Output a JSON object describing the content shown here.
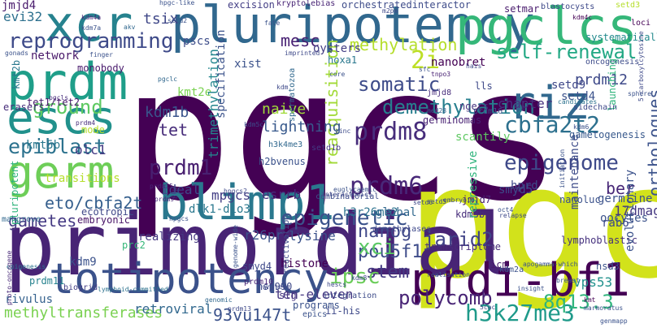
{
  "words": [
    {
      "text": "pgcs",
      "color": "#440154"
    },
    {
      "text": "pgc",
      "color": "#d2e21b"
    },
    {
      "text": "primordial",
      "color": "#482475"
    },
    {
      "text": "pluripotency",
      "color": "#31688e"
    },
    {
      "text": "pgclcs",
      "color": "#35b779"
    },
    {
      "text": "xcr",
      "color": "#26828e"
    },
    {
      "text": "prdm",
      "color": "#1f9e89"
    },
    {
      "text": "escs",
      "color": "#21918c"
    },
    {
      "text": "germ",
      "color": "#6ece58"
    },
    {
      "text": "blimp1",
      "color": "#2a788e"
    },
    {
      "text": "totipotency",
      "color": "#3b528b"
    },
    {
      "text": "prdi-bf1",
      "color": "#440154"
    },
    {
      "text": "riz",
      "color": "#31688e"
    },
    {
      "text": "reprogramming",
      "color": "#3e4a89"
    },
    {
      "text": "epiblast",
      "color": "#2c728e"
    },
    {
      "text": "ground",
      "color": "#5ec962"
    },
    {
      "text": "epigenetic",
      "color": "#3b528b"
    },
    {
      "text": "epigenome",
      "color": "#3e4989"
    },
    {
      "text": "prdm8",
      "color": "#472d7b"
    },
    {
      "text": "prdm6",
      "color": "#482878"
    },
    {
      "text": "prdm1",
      "color": "#481f70"
    },
    {
      "text": "cbfa2t2",
      "color": "#2d708e"
    },
    {
      "text": "demethylation",
      "color": "#277f8e"
    },
    {
      "text": "somatic",
      "color": "#3e4c8a"
    },
    {
      "text": "self-renewal",
      "color": "#22a884"
    },
    {
      "text": "methylation",
      "color": "#b5de2b"
    },
    {
      "text": "2i",
      "color": "#bddf26"
    },
    {
      "text": "reacquisition",
      "color": "#a2da37"
    },
    {
      "text": "h3k27me3",
      "color": "#1f9a8a"
    },
    {
      "text": "polycomb",
      "color": "#482475"
    },
    {
      "text": "jarid2",
      "color": "#404387"
    },
    {
      "text": "nanog",
      "color": "#3f4889"
    },
    {
      "text": "pou5f1",
      "color": "#3e4c8a"
    },
    {
      "text": "stem",
      "color": "#443983"
    },
    {
      "text": "ipsc",
      "color": "#6ccd5a"
    },
    {
      "text": "xci",
      "color": "#5ac864"
    },
    {
      "text": "8q13.3",
      "color": "#2fb47c"
    },
    {
      "text": "methyltransferases",
      "color": "#7ad151"
    },
    {
      "text": "gametes",
      "color": "#443983"
    },
    {
      "text": "eto/cbfa2t",
      "color": "#355f8d"
    },
    {
      "text": "ten-eleven",
      "color": "#453781"
    },
    {
      "text": "retroviral",
      "color": "#31688e"
    },
    {
      "text": "93vu147t",
      "color": "#3b528b"
    },
    {
      "text": "kdm9",
      "color": "#3b528b"
    },
    {
      "text": "rivulus",
      "color": "#34618d"
    },
    {
      "text": "tet",
      "color": "#472c7a"
    },
    {
      "text": "kdm1b",
      "color": "#3a548c"
    },
    {
      "text": "mesc",
      "color": "#482173"
    },
    {
      "text": "pscs",
      "color": "#3d4d8a"
    },
    {
      "text": "evi32",
      "color": "#2d708e"
    },
    {
      "text": "tsix",
      "color": "#3f4788"
    },
    {
      "text": "jmjd4",
      "color": "#481a6c"
    },
    {
      "text": "xist",
      "color": "#3b528b"
    },
    {
      "text": "kmt5b",
      "color": "#2a788e"
    },
    {
      "text": "olc1",
      "color": "#443a83"
    },
    {
      "text": "lightning",
      "color": "#38598c"
    },
    {
      "text": "naive",
      "color": "#a0da39"
    },
    {
      "text": "ideal",
      "color": "#3f4889"
    },
    {
      "text": "mpgcs",
      "color": "#433e85"
    },
    {
      "text": "esrrb",
      "color": "#472d7b"
    },
    {
      "text": "h3r26me2",
      "color": "#2c728e"
    },
    {
      "text": "r26pr",
      "color": "#3b528b"
    },
    {
      "text": "realizing",
      "color": "#453781"
    },
    {
      "text": "lysine",
      "color": "#3b528b"
    },
    {
      "text": "histone",
      "color": "#440154"
    },
    {
      "text": "prdm12",
      "color": "#3e4989"
    },
    {
      "text": "setd9",
      "color": "#3f4889"
    },
    {
      "text": "setd4",
      "color": "#3b528b"
    },
    {
      "text": "nanobret",
      "color": "#440154"
    },
    {
      "text": "chapter",
      "color": "#46327e"
    },
    {
      "text": "ber",
      "color": "#482878"
    },
    {
      "text": "germline",
      "color": "#3b528b"
    },
    {
      "text": "17dmag",
      "color": "#453781"
    },
    {
      "text": "rab6",
      "color": "#3e4989"
    },
    {
      "text": "hprd",
      "color": "#3e4989"
    },
    {
      "text": "maintenance",
      "color": "#3e4c8a"
    },
    {
      "text": "orthologues",
      "color": "#3b528b"
    },
    {
      "text": "vps53",
      "color": "#21918c"
    },
    {
      "text": "kdm3b",
      "color": "#472d7b"
    },
    {
      "text": "jmjd7",
      "color": "#482173"
    },
    {
      "text": "smyd5",
      "color": "#3e4c8a"
    },
    {
      "text": "repressive",
      "color": "#2fb47c"
    },
    {
      "text": "network",
      "color": "#481769"
    },
    {
      "text": "monobody",
      "color": "#481a6c"
    },
    {
      "text": "kmt2b",
      "color": "#2a788e"
    },
    {
      "text": "erasers",
      "color": "#472d7b"
    },
    {
      "text": "mode",
      "color": "#b8de29"
    },
    {
      "text": "pluripotent",
      "color": "#2fb47c"
    },
    {
      "text": "kmt2e",
      "color": "#7ad151"
    },
    {
      "text": "orchestratedinteractor",
      "color": "#3e4c8a"
    },
    {
      "text": "excision",
      "color": "#433e85"
    },
    {
      "text": "oysters",
      "color": "#433e85"
    },
    {
      "text": "hoxa1",
      "color": "#2a788e"
    },
    {
      "text": "trimethylation",
      "color": "#24868e"
    },
    {
      "text": "specification",
      "color": "#3b528b"
    },
    {
      "text": "gametogenesis",
      "color": "#38598c"
    },
    {
      "text": "lymphoblastic",
      "color": "#46327e"
    },
    {
      "text": "evolutionary",
      "color": "#3b528b"
    },
    {
      "text": "setd3",
      "color": "#b5de2b"
    },
    {
      "text": "setmar",
      "color": "#481a6c"
    },
    {
      "text": "kryptolebias",
      "color": "#482475"
    },
    {
      "text": "blastocysts",
      "color": "#3e4989"
    },
    {
      "text": "kdm4c",
      "color": "#440154"
    },
    {
      "text": "loci",
      "color": "#440154"
    },
    {
      "text": "systematically",
      "color": "#238a8d"
    },
    {
      "text": "oncogenesis",
      "color": "#3e4c8a"
    },
    {
      "text": "launching",
      "color": "#2fb47c"
    },
    {
      "text": "ngers",
      "color": "#46327e"
    },
    {
      "text": "prdm16",
      "color": "#3b528b"
    },
    {
      "text": "scantily",
      "color": "#5ec962"
    },
    {
      "text": "sidechain",
      "color": "#3e4989"
    },
    {
      "text": "candidates",
      "color": "#2c728e"
    },
    {
      "text": "jmjd8",
      "color": "#472d7b"
    },
    {
      "text": "tnpo3",
      "color": "#482173"
    },
    {
      "text": "med28",
      "color": "#34618d"
    },
    {
      "text": "germinomas",
      "color": "#482173"
    },
    {
      "text": "h3k4me3",
      "color": "#31688e"
    },
    {
      "text": "kdm",
      "color": "#3e4989"
    },
    {
      "text": "setd1b",
      "color": "#443983"
    },
    {
      "text": "zinc",
      "color": "#3e4c8a"
    },
    {
      "text": "spermatozoa",
      "color": "#31688e"
    },
    {
      "text": "h2bvenus",
      "color": "#3b528b"
    },
    {
      "text": "combinatorial",
      "color": "#3e4c8a"
    },
    {
      "text": "interactomics",
      "color": "#3f4889"
    },
    {
      "text": "dlk1-dio3",
      "color": "#2a788e"
    },
    {
      "text": "hfk",
      "color": "#3f4788"
    },
    {
      "text": "ecotropic",
      "color": "#3f4788"
    },
    {
      "text": "embryonic",
      "color": "#481467"
    },
    {
      "text": "transitions",
      "color": "#b5de2b"
    },
    {
      "text": "mahgrove",
      "color": "#31688e"
    },
    {
      "text": "epigenesis",
      "color": "#2c728e"
    },
    {
      "text": "proto-oncogene",
      "color": "#482878"
    },
    {
      "text": "prdm11",
      "color": "#26828e"
    },
    {
      "text": "biogrid",
      "color": "#433e85"
    },
    {
      "text": "lymphoid-committed",
      "color": "#2c728e"
    },
    {
      "text": "prc2",
      "color": "#35b779"
    },
    {
      "text": "smyd4",
      "color": "#3e4989"
    },
    {
      "text": "hsp990",
      "color": "#3e4989"
    },
    {
      "text": "slg",
      "color": "#463480"
    },
    {
      "text": "programs",
      "color": "#3b528b"
    },
    {
      "text": "epics",
      "color": "#3b528b"
    },
    {
      "text": "reactivation",
      "color": "#3e4c8a"
    },
    {
      "text": "integration",
      "color": "#3e4c8a"
    },
    {
      "text": "global",
      "color": "#31688e"
    },
    {
      "text": "demethylases",
      "color": "#3e4989"
    },
    {
      "text": "transcriptome",
      "color": "#472c7a"
    },
    {
      "text": "icm",
      "color": "#481a6c"
    },
    {
      "text": "kdm2a",
      "color": "#3b528b"
    },
    {
      "text": "nsd3",
      "color": "#3b528b"
    },
    {
      "text": "oocytes",
      "color": "#3b528b"
    },
    {
      "text": "nanoluc",
      "color": "#3b528b"
    },
    {
      "text": "prdm10",
      "color": "#482878"
    },
    {
      "text": "prdm15",
      "color": "#482878"
    },
    {
      "text": "prdm9",
      "color": "#482878"
    },
    {
      "text": "prdm4",
      "color": "#472d7b"
    },
    {
      "text": "pgclc",
      "color": "#31688e"
    },
    {
      "text": "pgcls",
      "color": "#472d7b"
    },
    {
      "text": "tet1/tet2",
      "color": "#481a6c"
    },
    {
      "text": "kdm4a",
      "color": "#482878"
    },
    {
      "text": "kdm7a",
      "color": "#3b528b"
    },
    {
      "text": "setd2",
      "color": "#3b528b"
    },
    {
      "text": "setd6",
      "color": "#3e4989"
    },
    {
      "text": "setd5",
      "color": "#3e4989"
    },
    {
      "text": "hpgc-like",
      "color": "#3b528b"
    },
    {
      "text": "akv",
      "color": "#31688e"
    },
    {
      "text": "lls",
      "color": "#3e4989"
    },
    {
      "text": "ii-his",
      "color": "#3e4989"
    },
    {
      "text": "oct4",
      "color": "#3b528b"
    },
    {
      "text": "fate",
      "color": "#3b528b"
    },
    {
      "text": "imprinted",
      "color": "#3e4989"
    },
    {
      "text": "core",
      "color": "#3b528b"
    },
    {
      "text": "finger",
      "color": "#3b528b"
    },
    {
      "text": "writers",
      "color": "#3e4989"
    },
    {
      "text": "hescs",
      "color": "#3e4989"
    },
    {
      "text": "euglycaemic",
      "color": "#3b528b"
    },
    {
      "text": "realisation",
      "color": "#3b528b"
    },
    {
      "text": "apogamma-which",
      "color": "#3b528b"
    },
    {
      "text": "insight",
      "color": "#3b528b"
    },
    {
      "text": "breast",
      "color": "#3b528b"
    },
    {
      "text": "relapse",
      "color": "#3e4989"
    },
    {
      "text": "initiation",
      "color": "#3b528b"
    },
    {
      "text": "embryoid",
      "color": "#3e4989"
    },
    {
      "text": "genomic",
      "color": "#31688e"
    },
    {
      "text": "prdm13",
      "color": "#3e4989"
    },
    {
      "text": "genome-wide",
      "color": "#3b528b"
    },
    {
      "text": "gonads",
      "color": "#3b528b"
    },
    {
      "text": "kdm5c",
      "color": "#3e4989"
    },
    {
      "text": "kdm8",
      "color": "#3e4989"
    },
    {
      "text": "kdm6",
      "color": "#3b528b"
    },
    {
      "text": "kmt",
      "color": "#440154"
    },
    {
      "text": "5cac",
      "color": "#3e4989"
    },
    {
      "text": "marmoratus",
      "color": "#3b528b"
    },
    {
      "text": "genmapp",
      "color": "#3b528b"
    },
    {
      "text": "5-carboxylcytosine",
      "color": "#3e4989"
    },
    {
      "text": "sphere",
      "color": "#3b528b"
    },
    {
      "text": "hpgcs",
      "color": "#3b528b"
    },
    {
      "text": "hais",
      "color": "#3e4989"
    },
    {
      "text": "sfc",
      "color": "#3b528b"
    },
    {
      "text": "m2pm",
      "color": "#3e4989"
    },
    {
      "text": "hpgcs2",
      "color": "#3e4989"
    }
  ]
}
